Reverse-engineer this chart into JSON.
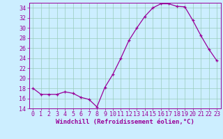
{
  "hours": [
    0,
    1,
    2,
    3,
    4,
    5,
    6,
    7,
    8,
    9,
    10,
    11,
    12,
    13,
    14,
    15,
    16,
    17,
    18,
    19,
    20,
    21,
    22,
    23
  ],
  "values": [
    18.0,
    16.8,
    16.8,
    16.8,
    17.3,
    17.0,
    16.2,
    15.8,
    14.3,
    18.2,
    20.8,
    24.0,
    27.5,
    30.0,
    32.3,
    34.0,
    34.8,
    34.8,
    34.3,
    34.2,
    31.5,
    28.5,
    25.8,
    23.5
  ],
  "line_color": "#990099",
  "marker": "+",
  "bg_color": "#cceeff",
  "grid_color": "#99ccbb",
  "xlabel": "Windchill (Refroidissement éolien,°C)",
  "xlabel_color": "#990099",
  "tick_color": "#990099",
  "ylim": [
    14,
    35
  ],
  "yticks": [
    14,
    16,
    18,
    20,
    22,
    24,
    26,
    28,
    30,
    32,
    34
  ],
  "xlim": [
    -0.5,
    23.5
  ],
  "xticks": [
    0,
    1,
    2,
    3,
    4,
    5,
    6,
    7,
    8,
    9,
    10,
    11,
    12,
    13,
    14,
    15,
    16,
    17,
    18,
    19,
    20,
    21,
    22,
    23
  ],
  "font_size": 6,
  "label_font_size": 6.5
}
